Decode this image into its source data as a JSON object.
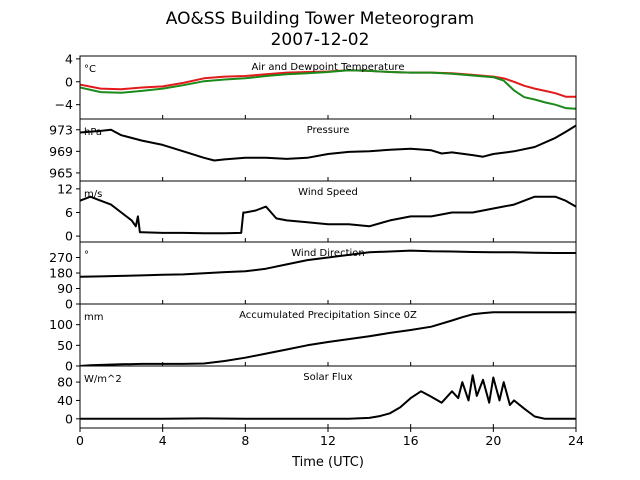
{
  "title": "AO&SS Building Tower Meteorogram",
  "subtitle": "2007-12-02",
  "xlabel": "Time (UTC)",
  "x_ticks": [
    "0",
    "4",
    "8",
    "12",
    "16",
    "20",
    "24"
  ],
  "colors": {
    "temperature": "#e31a1c",
    "dewpoint": "#1a8a1a",
    "line": "#000000"
  },
  "chart_data": [
    {
      "type": "line",
      "title": "Air and Dewpoint Temperature",
      "unit": "°C",
      "xlim": [
        0,
        24
      ],
      "ylim": [
        -6.5,
        4.5
      ],
      "yticks": [
        4,
        0,
        -4
      ],
      "ytick_labels": [
        "4",
        "0",
        "−4"
      ],
      "grid": false,
      "series": [
        {
          "key": "temperature",
          "x": [
            0,
            1,
            2,
            3,
            4,
            5,
            6,
            7,
            8,
            9,
            10,
            11,
            12,
            13,
            14,
            15,
            16,
            17,
            18,
            19,
            20,
            20.5,
            21,
            21.5,
            22,
            22.5,
            23,
            23.5,
            24
          ],
          "y": [
            -0.5,
            -1.2,
            -1.3,
            -1,
            -0.8,
            -0.2,
            0.6,
            0.9,
            1.0,
            1.3,
            1.6,
            1.7,
            1.8,
            2.0,
            1.9,
            1.7,
            1.6,
            1.6,
            1.5,
            1.2,
            0.9,
            0.6,
            0.0,
            -0.7,
            -1.2,
            -1.6,
            -2.0,
            -2.6,
            -2.6
          ]
        },
        {
          "key": "dewpoint",
          "x": [
            0,
            1,
            2,
            3,
            4,
            5,
            6,
            7,
            8,
            9,
            10,
            11,
            12,
            13,
            14,
            15,
            16,
            17,
            18,
            19,
            20,
            20.5,
            21,
            21.5,
            22,
            22.5,
            23,
            23.5,
            24
          ],
          "y": [
            -1.0,
            -1.8,
            -1.9,
            -1.6,
            -1.2,
            -0.6,
            0.1,
            0.4,
            0.6,
            1.0,
            1.3,
            1.5,
            1.7,
            2.0,
            1.9,
            1.7,
            1.6,
            1.6,
            1.4,
            1.1,
            0.8,
            0.2,
            -1.5,
            -2.7,
            -3.1,
            -3.6,
            -4.0,
            -4.6,
            -4.7
          ]
        }
      ]
    },
    {
      "type": "line",
      "title": "Pressure",
      "unit": "hPa",
      "xlim": [
        0,
        24
      ],
      "ylim": [
        963.5,
        975
      ],
      "yticks": [
        973,
        969,
        965
      ],
      "ytick_labels": [
        "973",
        "969",
        "965"
      ],
      "grid": false,
      "series": [
        {
          "key": "line",
          "x": [
            0,
            1,
            1.5,
            2,
            3,
            4,
            5,
            6,
            6.5,
            7,
            8,
            9,
            10,
            11,
            12,
            13,
            14,
            15,
            16,
            17,
            17.5,
            18,
            19,
            19.5,
            20,
            21,
            22,
            23,
            23.5,
            24
          ],
          "y": [
            972.5,
            972.8,
            973.0,
            972.0,
            971.0,
            970.2,
            969.0,
            967.8,
            967.3,
            967.5,
            967.8,
            967.8,
            967.6,
            967.8,
            968.5,
            968.9,
            969.0,
            969.3,
            969.5,
            969.2,
            968.6,
            968.8,
            968.3,
            968.0,
            968.5,
            969.0,
            969.8,
            971.5,
            972.6,
            973.8
          ]
        }
      ]
    },
    {
      "type": "line",
      "title": "Wind Speed",
      "unit": "m/s",
      "xlim": [
        0,
        24
      ],
      "ylim": [
        -1.5,
        14
      ],
      "yticks": [
        12,
        6,
        0
      ],
      "ytick_labels": [
        "12",
        "6",
        "0"
      ],
      "grid": false,
      "series": [
        {
          "key": "line",
          "x": [
            0,
            0.5,
            1,
            1.5,
            2,
            2.5,
            2.7,
            2.8,
            2.9,
            3,
            4,
            5,
            6,
            7,
            7.8,
            7.9,
            8,
            8.5,
            9,
            9.5,
            10,
            11,
            12,
            13,
            14,
            15,
            16,
            17,
            18,
            19,
            20,
            21,
            22,
            23,
            23.5,
            24
          ],
          "y": [
            9,
            10,
            9,
            8,
            6,
            4,
            2.5,
            5,
            1,
            1,
            0.8,
            0.8,
            0.7,
            0.7,
            0.8,
            6,
            6,
            6.5,
            7.5,
            4.5,
            4,
            3.5,
            3,
            3,
            2.5,
            4,
            5,
            5,
            6,
            6,
            7,
            8,
            10,
            10,
            9,
            7.5
          ]
        }
      ]
    },
    {
      "type": "line",
      "title": "Wind Direction",
      "unit": "°",
      "xlim": [
        0,
        24
      ],
      "ylim": [
        0,
        360
      ],
      "yticks": [
        270,
        180,
        90,
        0
      ],
      "ytick_labels": [
        "270",
        "180",
        "90",
        "0"
      ],
      "grid": false,
      "series": [
        {
          "key": "line",
          "x": [
            0,
            1,
            2,
            3,
            4,
            5,
            6,
            7,
            8,
            9,
            10,
            11,
            12,
            13,
            14,
            15,
            16,
            17,
            18,
            19,
            20,
            21,
            22,
            23,
            24
          ],
          "y": [
            158,
            160,
            163,
            166,
            170,
            172,
            178,
            185,
            190,
            205,
            230,
            255,
            270,
            285,
            300,
            305,
            310,
            306,
            305,
            302,
            300,
            300,
            298,
            296,
            296
          ]
        }
      ]
    },
    {
      "type": "line",
      "title": "Accumulated Precipitation Since 0Z",
      "unit": "mm",
      "xlim": [
        0,
        24
      ],
      "ylim": [
        0,
        150
      ],
      "yticks": [
        100,
        50,
        0
      ],
      "ytick_labels": [
        "100",
        "50",
        "0"
      ],
      "grid": false,
      "series": [
        {
          "key": "line",
          "x": [
            0,
            0.5,
            2,
            3,
            4,
            5,
            6,
            7,
            8,
            9,
            10,
            11,
            12,
            13,
            14,
            15,
            16,
            17,
            18,
            18.5,
            19,
            19.5,
            20,
            21,
            22,
            23,
            24
          ],
          "y": [
            0,
            2,
            4,
            5,
            5,
            5,
            6,
            12,
            20,
            30,
            40,
            50,
            58,
            65,
            72,
            80,
            87,
            95,
            110,
            118,
            125,
            128,
            130,
            130,
            130,
            130,
            130
          ]
        }
      ]
    },
    {
      "type": "line",
      "title": "Solar Flux",
      "unit": "W/m^2",
      "xlim": [
        0,
        24
      ],
      "ylim": [
        -20,
        115
      ],
      "yticks": [
        80,
        40,
        0
      ],
      "ytick_labels": [
        "80",
        "40",
        "0"
      ],
      "grid": false,
      "series": [
        {
          "key": "line",
          "x": [
            0,
            2,
            4,
            6,
            8,
            10,
            12,
            13,
            14,
            14.5,
            15,
            15.5,
            16,
            16.5,
            17,
            17.5,
            18,
            18.3,
            18.5,
            18.8,
            19,
            19.2,
            19.5,
            19.8,
            20,
            20.3,
            20.5,
            20.8,
            21,
            21.5,
            22,
            22.5,
            23,
            24
          ],
          "y": [
            0,
            0,
            0,
            1,
            0,
            0,
            0,
            0,
            2,
            6,
            12,
            25,
            45,
            60,
            48,
            35,
            60,
            45,
            80,
            40,
            95,
            50,
            85,
            35,
            90,
            40,
            80,
            30,
            40,
            22,
            5,
            0,
            0,
            0
          ]
        }
      ]
    }
  ]
}
